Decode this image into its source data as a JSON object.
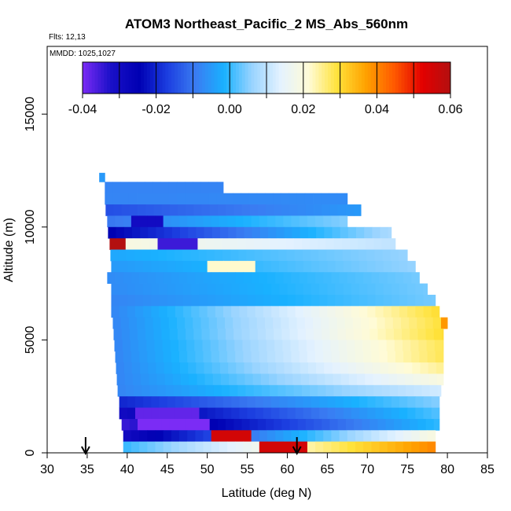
{
  "chart_data": {
    "type": "heatmap",
    "title": "ATOM3 Northeast_Pacific_2 MS_Abs_560nm",
    "flights_label": "Flts: 12,13",
    "mmdd_label": "MMDD: 1025,1027",
    "xlabel": "Latitude (deg N)",
    "ylabel": "Altitude (m)",
    "xlim": [
      30,
      85
    ],
    "ylim": [
      0,
      18000
    ],
    "x_ticks": [
      "30",
      "35",
      "40",
      "45",
      "50",
      "55",
      "60",
      "65",
      "70",
      "75",
      "80",
      "85"
    ],
    "y_ticks": [
      "0",
      "5000",
      "10000",
      "15000"
    ],
    "colorbar": {
      "range": [
        -0.04,
        0.06
      ],
      "tick_labels": [
        "-0.04",
        "-0.02",
        "0.00",
        "0.02",
        "0.04",
        "0.06"
      ],
      "colors": [
        "#7b2cf5",
        "#1a10c8",
        "#0000b3",
        "#1c3ee0",
        "#3a7cf2",
        "#19b1ff",
        "#9ad4ff",
        "#e4f2ff",
        "#fffbd6",
        "#ffe23a",
        "#ffa200",
        "#ff5a00",
        "#e30000",
        "#b31010"
      ]
    },
    "arrows_at_latitude": [
      34.8,
      61.2
    ],
    "layers": [
      {
        "alt_min": 12000,
        "alt_max": 12400,
        "lat_min": 36.5,
        "lat_max": 37.2,
        "value_start": -0.005,
        "value_end": -0.005
      },
      {
        "alt_min": 11500,
        "alt_max": 12000,
        "lat_min": 37.2,
        "lat_max": 52.0,
        "value_start": -0.008,
        "value_end": -0.008
      },
      {
        "alt_min": 11000,
        "alt_max": 11500,
        "lat_min": 37.2,
        "lat_max": 67.5,
        "value_start": -0.008,
        "value_end": -0.007
      },
      {
        "alt_min": 10500,
        "alt_max": 11000,
        "lat_min": 37.3,
        "lat_max": 69.2,
        "value_start": -0.015,
        "value_end": -0.005
      },
      {
        "alt_min": 10000,
        "alt_max": 10500,
        "lat_min": 37.5,
        "lat_max": 67.5,
        "value_start": -0.01,
        "value_end": 0.005
      },
      {
        "alt_min": 9500,
        "alt_max": 10000,
        "lat_min": 37.6,
        "lat_max": 73.0,
        "value_start": -0.025,
        "value_end": 0.008
      },
      {
        "alt_min": 9000,
        "alt_max": 9500,
        "lat_min": 37.8,
        "lat_max": 73.5,
        "value_start": 0.02,
        "value_end": 0.01
      },
      {
        "alt_min": 8500,
        "alt_max": 9000,
        "lat_min": 37.9,
        "lat_max": 75.0,
        "value_start": -0.003,
        "value_end": 0.006
      },
      {
        "alt_min": 8000,
        "alt_max": 8500,
        "lat_min": 38.0,
        "lat_max": 76.0,
        "value_start": -0.005,
        "value_end": 0.006
      },
      {
        "alt_min": 7500,
        "alt_max": 8000,
        "lat_min": 37.5,
        "lat_max": 76.5,
        "value_start": -0.007,
        "value_end": 0.004
      },
      {
        "alt_min": 7000,
        "alt_max": 7500,
        "lat_min": 38.0,
        "lat_max": 77.5,
        "value_start": -0.007,
        "value_end": 0.004
      },
      {
        "alt_min": 6500,
        "alt_max": 7000,
        "lat_min": 38.0,
        "lat_max": 78.5,
        "value_start": -0.008,
        "value_end": 0.004
      },
      {
        "alt_min": 6000,
        "alt_max": 6500,
        "lat_min": 38.0,
        "lat_max": 79.0,
        "value_start": -0.008,
        "value_end": 0.03
      },
      {
        "alt_min": 5500,
        "alt_max": 6000,
        "lat_min": 38.2,
        "lat_max": 80.0,
        "value_start": -0.008,
        "value_end": 0.03
      },
      {
        "alt_min": 5000,
        "alt_max": 5500,
        "lat_min": 38.3,
        "lat_max": 79.5,
        "value_start": -0.008,
        "value_end": 0.03
      },
      {
        "alt_min": 4500,
        "alt_max": 5000,
        "lat_min": 38.4,
        "lat_max": 79.5,
        "value_start": -0.008,
        "value_end": 0.028
      },
      {
        "alt_min": 4000,
        "alt_max": 4500,
        "lat_min": 38.5,
        "lat_max": 79.5,
        "value_start": -0.008,
        "value_end": 0.028
      },
      {
        "alt_min": 3500,
        "alt_max": 4000,
        "lat_min": 38.6,
        "lat_max": 79.5,
        "value_start": -0.008,
        "value_end": 0.025
      },
      {
        "alt_min": 3000,
        "alt_max": 3500,
        "lat_min": 38.7,
        "lat_max": 79.5,
        "value_start": -0.008,
        "value_end": 0.02
      },
      {
        "alt_min": 2500,
        "alt_max": 3000,
        "lat_min": 38.8,
        "lat_max": 79.2,
        "value_start": -0.008,
        "value_end": 0.012
      },
      {
        "alt_min": 2000,
        "alt_max": 2500,
        "lat_min": 39.0,
        "lat_max": 79.0,
        "value_start": -0.02,
        "value_end": 0.005
      },
      {
        "alt_min": 1500,
        "alt_max": 2000,
        "lat_min": 39.0,
        "lat_max": 79.0,
        "value_start": -0.03,
        "value_end": 0.002
      },
      {
        "alt_min": 1000,
        "alt_max": 1500,
        "lat_min": 39.3,
        "lat_max": 79.0,
        "value_start": -0.035,
        "value_end": 0.0
      },
      {
        "alt_min": 500,
        "alt_max": 1000,
        "lat_min": 39.5,
        "lat_max": 78.5,
        "value_start": -0.03,
        "value_end": 0.02
      },
      {
        "alt_min": 0,
        "alt_max": 500,
        "lat_min": 39.5,
        "lat_max": 78.5,
        "value_start": 0.0,
        "value_end": 0.04
      }
    ],
    "features": [
      {
        "alt_min": 9000,
        "alt_max": 9500,
        "lat_min": 37.8,
        "lat_max": 39.5,
        "value": 0.06
      },
      {
        "alt_min": 9000,
        "alt_max": 9500,
        "lat_min": 44.0,
        "lat_max": 49.0,
        "value": -0.035
      },
      {
        "alt_min": 10000,
        "alt_max": 10500,
        "lat_min": 41.0,
        "lat_max": 44.0,
        "value": -0.03
      },
      {
        "alt_min": 8000,
        "alt_max": 8500,
        "lat_min": 50.0,
        "lat_max": 56.0,
        "value": 0.022
      },
      {
        "alt_min": 1500,
        "alt_max": 2000,
        "lat_min": 41.0,
        "lat_max": 49.0,
        "value": -0.038
      },
      {
        "alt_min": 1000,
        "alt_max": 1500,
        "lat_min": 41.0,
        "lat_max": 50.0,
        "value": -0.04
      },
      {
        "alt_min": 500,
        "alt_max": 1000,
        "lat_min": 50.5,
        "lat_max": 55.0,
        "value": 0.055
      },
      {
        "alt_min": 0,
        "alt_max": 500,
        "lat_min": 56.5,
        "lat_max": 62.0,
        "value": 0.055
      },
      {
        "alt_min": 5500,
        "alt_max": 6500,
        "lat_min": 79.0,
        "lat_max": 80.2,
        "value": 0.038
      }
    ]
  }
}
